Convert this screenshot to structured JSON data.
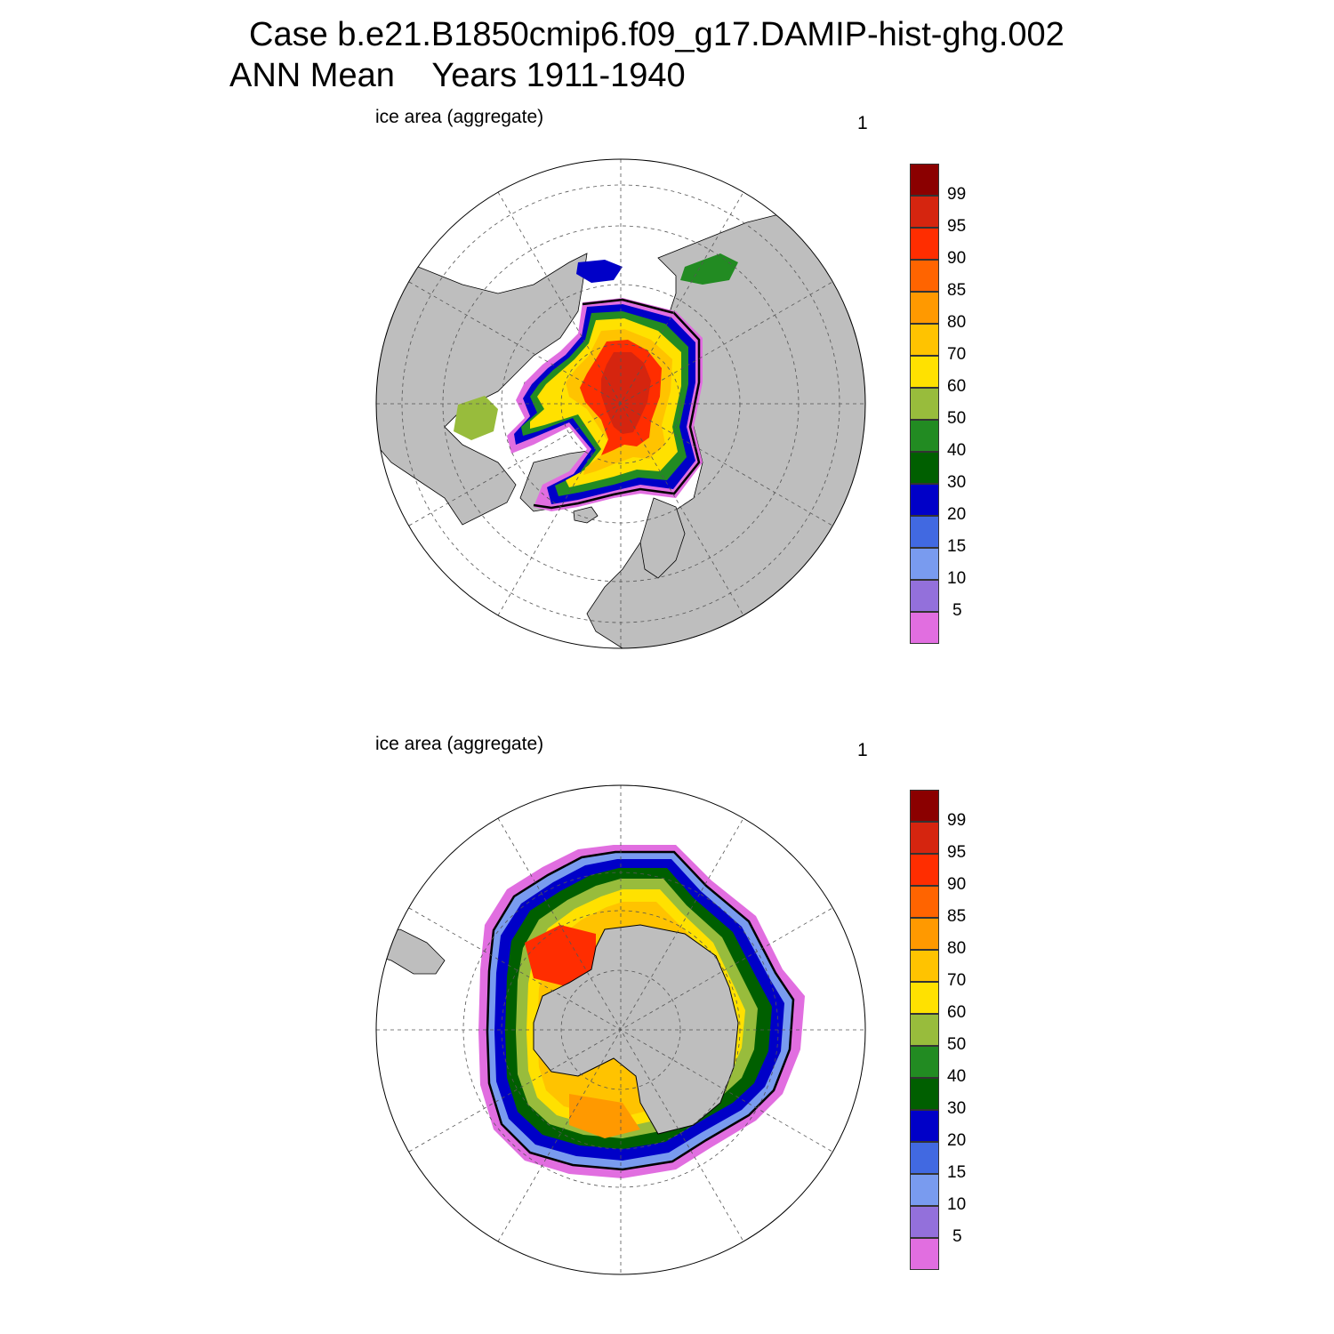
{
  "title": {
    "line1": "Case b.e21.B1850cmip6.f09_g17.DAMIP-hist-ghg.002",
    "line2": "ANN Mean    Years 1911-1940"
  },
  "colors": {
    "land": "#bebebe",
    "ocean": "#ffffff",
    "outline": "#000000",
    "grid": "#555555"
  },
  "colorbar": {
    "levels": [
      "5",
      "10",
      "15",
      "20",
      "30",
      "40",
      "50",
      "60",
      "70",
      "80",
      "85",
      "90",
      "95",
      "99"
    ],
    "colors": [
      "#e16ee0",
      "#9370db",
      "#799bef",
      "#4169e1",
      "#0000c8",
      "#005f00",
      "#228b22",
      "#98bc3c",
      "#ffe100",
      "#ffc300",
      "#ff9900",
      "#ff6400",
      "#ff2d00",
      "#d5250f",
      "#8b0000"
    ]
  },
  "panels": [
    {
      "id": "north",
      "label": "ice area  (aggregate)",
      "number": "1"
    },
    {
      "id": "south",
      "label": "ice area  (aggregate)",
      "number": "1"
    }
  ]
}
